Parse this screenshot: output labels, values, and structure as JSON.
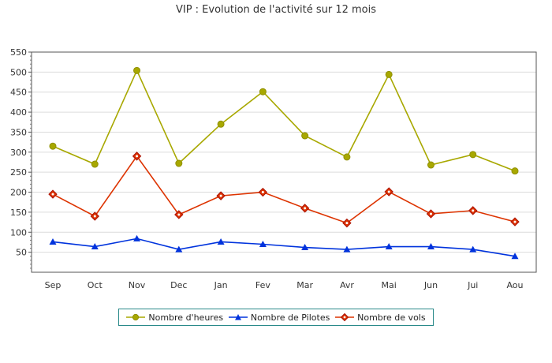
{
  "chart_data": {
    "type": "line",
    "title": "VIP : Evolution de l'activité sur 12 mois",
    "categories": [
      "Sep",
      "Oct",
      "Nov",
      "Dec",
      "Jan",
      "Fev",
      "Mar",
      "Avr",
      "Mai",
      "Jun",
      "Jui",
      "Aou"
    ],
    "ylim": [
      0,
      550
    ],
    "yticks": [
      50,
      100,
      150,
      200,
      250,
      300,
      350,
      400,
      450,
      500,
      550
    ],
    "grid": true,
    "legend_position": "bottom",
    "series": [
      {
        "name": "Nombre d'heures",
        "color": "#a8a800",
        "marker": "circle",
        "values": [
          315,
          270,
          504,
          272,
          370,
          451,
          341,
          288,
          494,
          268,
          294,
          253
        ]
      },
      {
        "name": "Nombre de Pilotes",
        "color": "#0033dd",
        "marker": "triangle",
        "values": [
          76,
          64,
          84,
          57,
          76,
          70,
          62,
          57,
          64,
          64,
          57,
          40
        ]
      },
      {
        "name": "Nombre de vols",
        "color": "#dd3300",
        "marker": "diamond",
        "values": [
          195,
          140,
          290,
          144,
          191,
          200,
          160,
          123,
          201,
          146,
          154,
          126
        ]
      }
    ]
  }
}
